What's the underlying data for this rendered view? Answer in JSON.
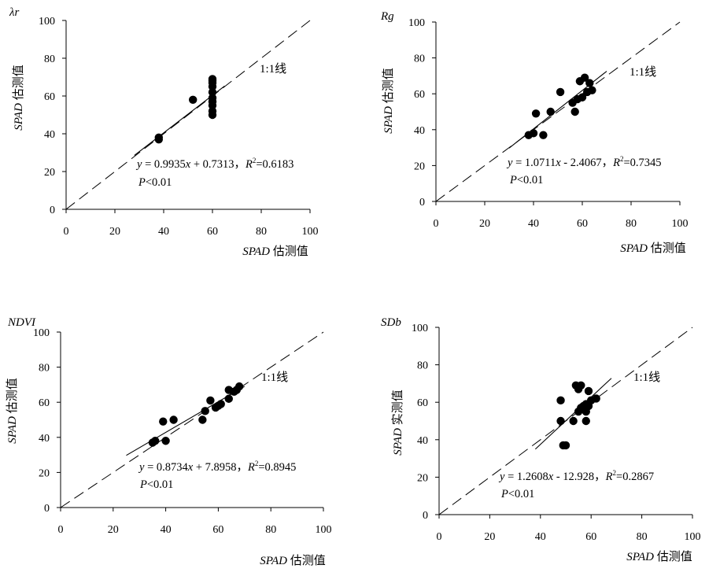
{
  "chart_data": [
    {
      "type": "scatter",
      "panel_label": "λr",
      "xlabel": {
        "var": "SPAD",
        "suffix": " 估测值"
      },
      "ylabel": {
        "var": "SPAD",
        "suffix": " 估测值"
      },
      "xlim": [
        0,
        100
      ],
      "ylim": [
        0,
        100
      ],
      "xticks": [
        0,
        20,
        40,
        60,
        80,
        100
      ],
      "yticks": [
        0,
        20,
        40,
        60,
        80,
        100
      ],
      "one_to_one_label": "1:1线",
      "equation": {
        "y": "y",
        "eq": " = 0.9935",
        "x": "x",
        "rest": " + 0.7313，",
        "R": "R",
        "sup": "2",
        "rv": "=0.6183"
      },
      "p_text": {
        "P": "P",
        "rest": "<0.01"
      },
      "fit": {
        "slope": 0.9935,
        "intercept": 0.7313,
        "x_range": [
          28,
          65
        ]
      },
      "points": [
        [
          38,
          37
        ],
        [
          38,
          38
        ],
        [
          52,
          58
        ],
        [
          60,
          50
        ],
        [
          60,
          52
        ],
        [
          60,
          55
        ],
        [
          60,
          57
        ],
        [
          60,
          59
        ],
        [
          60,
          62
        ],
        [
          60,
          65
        ],
        [
          60,
          67
        ],
        [
          60,
          68
        ],
        [
          60,
          69
        ]
      ]
    },
    {
      "type": "scatter",
      "panel_label": "Rg",
      "xlabel": {
        "var": "SPAD",
        "suffix": " 估测值"
      },
      "ylabel": {
        "var": "SPAD",
        "suffix": " 估测值"
      },
      "xlim": [
        0,
        100
      ],
      "ylim": [
        0,
        100
      ],
      "xticks": [
        0,
        20,
        40,
        60,
        80,
        100
      ],
      "yticks": [
        0,
        20,
        40,
        60,
        80,
        100
      ],
      "one_to_one_label": "1:1线",
      "equation": {
        "y": "y",
        "eq": " = 1.0711",
        "x": "x",
        "rest": " - 2.4067，",
        "R": "R",
        "sup": "2",
        "rv": "=0.7345"
      },
      "p_text": {
        "P": "P",
        "rest": "<0.01"
      },
      "fit": {
        "slope": 1.0711,
        "intercept": -2.4067,
        "x_range": [
          30,
          70
        ]
      },
      "points": [
        [
          38,
          37
        ],
        [
          40,
          38
        ],
        [
          41,
          49
        ],
        [
          44,
          37
        ],
        [
          47,
          50
        ],
        [
          51,
          61
        ],
        [
          56,
          55
        ],
        [
          57,
          50
        ],
        [
          58,
          57
        ],
        [
          59,
          67
        ],
        [
          60,
          58
        ],
        [
          61,
          69
        ],
        [
          62,
          61
        ],
        [
          63,
          66
        ],
        [
          64,
          62
        ]
      ]
    },
    {
      "type": "scatter",
      "panel_label": "NDVI",
      "xlabel": {
        "var": "SPAD",
        "suffix": " 估测值"
      },
      "ylabel": {
        "var": "SPAD",
        "suffix": " 估测值"
      },
      "xlim": [
        0,
        100
      ],
      "ylim": [
        0,
        100
      ],
      "xticks": [
        0,
        20,
        40,
        60,
        80,
        100
      ],
      "yticks": [
        0,
        20,
        40,
        60,
        80,
        100
      ],
      "one_to_one_label": "1:1线",
      "equation": {
        "y": "y",
        "eq": " = 0.8734",
        "x": "x",
        "rest": " + 7.8958，",
        "R": "R",
        "sup": "2",
        "rv": "=0.8945"
      },
      "p_text": {
        "P": "P",
        "rest": "<0.01"
      },
      "fit": {
        "slope": 0.8734,
        "intercept": 7.8958,
        "x_range": [
          25,
          70
        ]
      },
      "points": [
        [
          35,
          37
        ],
        [
          36,
          38
        ],
        [
          39,
          49
        ],
        [
          40,
          38
        ],
        [
          43,
          50
        ],
        [
          54,
          50
        ],
        [
          55,
          55
        ],
        [
          57,
          61
        ],
        [
          59,
          57
        ],
        [
          60,
          58
        ],
        [
          61,
          59
        ],
        [
          64,
          62
        ],
        [
          64,
          67
        ],
        [
          66,
          66
        ],
        [
          67,
          67
        ],
        [
          68,
          69
        ]
      ]
    },
    {
      "type": "scatter",
      "panel_label": "SDb",
      "xlabel": {
        "var": "SPAD",
        "suffix": " 估测值"
      },
      "ylabel": {
        "var": "SPAD",
        "suffix": " 实测值"
      },
      "xlim": [
        0,
        100
      ],
      "ylim": [
        0,
        100
      ],
      "xticks": [
        0,
        20,
        40,
        60,
        80,
        100
      ],
      "yticks": [
        0,
        20,
        40,
        60,
        80,
        100
      ],
      "one_to_one_label": "1:1线",
      "equation": {
        "y": "y",
        "eq": " = 1.2608",
        "x": "x",
        "rest": " - 12.928，",
        "R": "R",
        "sup": "2",
        "rv": "=0.2867"
      },
      "p_text": {
        "P": "P",
        "rest": "<0.01"
      },
      "fit": {
        "slope": 1.2608,
        "intercept": -12.928,
        "x_range": [
          38,
          68
        ]
      },
      "points": [
        [
          48,
          50
        ],
        [
          48,
          61
        ],
        [
          49,
          37
        ],
        [
          50,
          37
        ],
        [
          53,
          50
        ],
        [
          54,
          69
        ],
        [
          55,
          55
        ],
        [
          55,
          67
        ],
        [
          56,
          57
        ],
        [
          56,
          69
        ],
        [
          57,
          58
        ],
        [
          58,
          59
        ],
        [
          58,
          55
        ],
        [
          58,
          50
        ],
        [
          59,
          58
        ],
        [
          59,
          66
        ],
        [
          60,
          61
        ],
        [
          62,
          62
        ]
      ]
    }
  ]
}
